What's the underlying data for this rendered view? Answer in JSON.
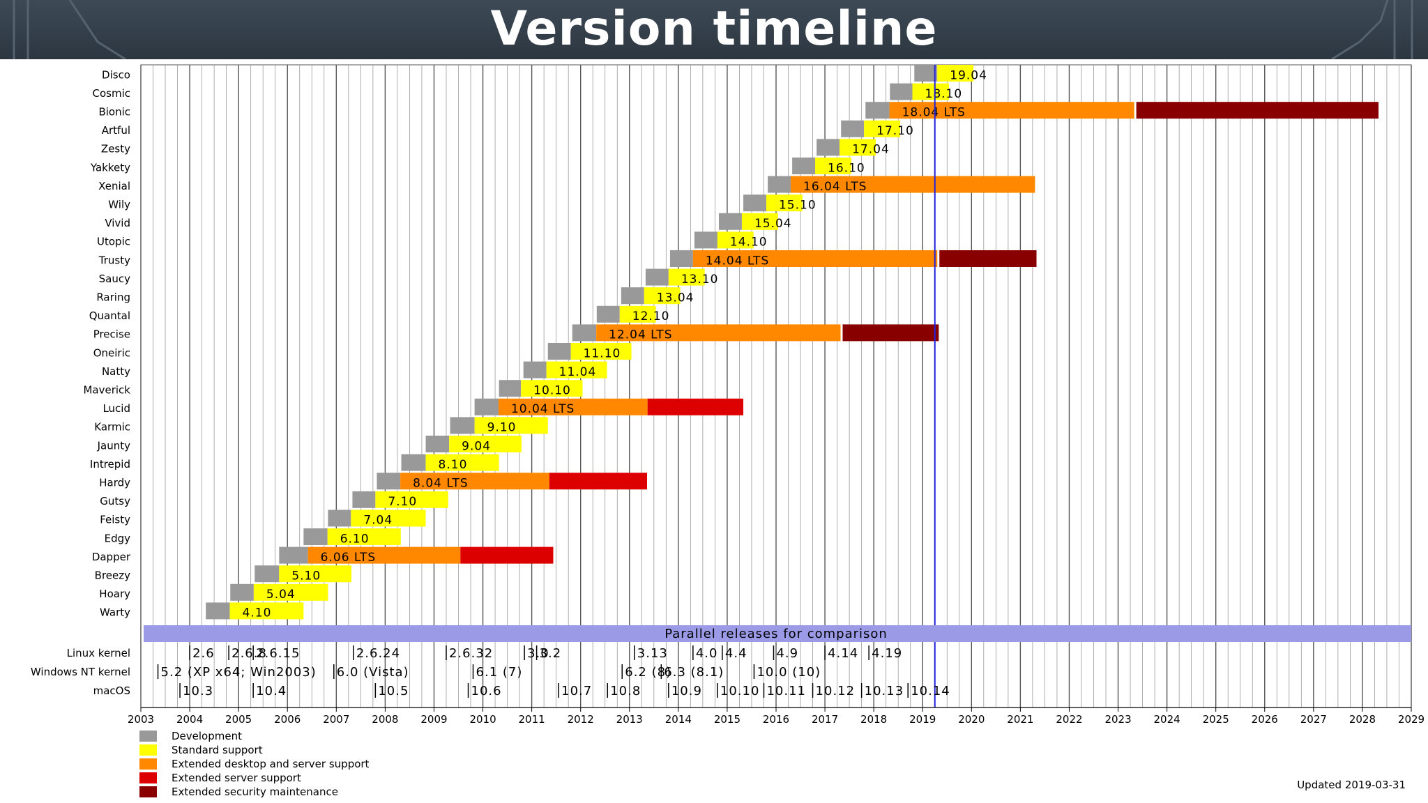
{
  "title": "Version timeline",
  "chart_data": {
    "type": "gantt",
    "x_range": [
      2003,
      2029
    ],
    "year_ticks": [
      "2003",
      "2004",
      "2005",
      "2006",
      "2007",
      "2008",
      "2009",
      "2010",
      "2011",
      "2012",
      "2013",
      "2014",
      "2015",
      "2016",
      "2017",
      "2018",
      "2019",
      "2020",
      "2021",
      "2022",
      "2023",
      "2024",
      "2025",
      "2026",
      "2027",
      "2028",
      "2029"
    ],
    "now_marker": 2019.25,
    "colors": {
      "development": "#999999",
      "standard": "#ffff00",
      "extended_desktop_server": "#ff8800",
      "extended_server": "#dd0000",
      "esm": "#880000"
    },
    "releases": [
      {
        "name": "Disco",
        "label": "19.04",
        "dev": 2018.83,
        "start": 2019.3,
        "std_end": 2020.04
      },
      {
        "name": "Cosmic",
        "label": "18.10",
        "dev": 2018.33,
        "start": 2018.79,
        "std_end": 2019.54
      },
      {
        "name": "Bionic",
        "label": "18.04 LTS",
        "dev": 2017.83,
        "start": 2018.32,
        "std_end": 2018.32,
        "ext_end": 2023.33,
        "esm_end": 2028.33
      },
      {
        "name": "Artful",
        "label": "17.10",
        "dev": 2017.33,
        "start": 2017.8,
        "std_end": 2018.54
      },
      {
        "name": "Zesty",
        "label": "17.04",
        "dev": 2016.83,
        "start": 2017.3,
        "std_end": 2018.04
      },
      {
        "name": "Yakkety",
        "label": "16.10",
        "dev": 2016.33,
        "start": 2016.8,
        "std_end": 2017.54
      },
      {
        "name": "Xenial",
        "label": "16.04 LTS",
        "dev": 2015.83,
        "start": 2016.3,
        "std_end": 2016.3,
        "ext_end": 2021.3
      },
      {
        "name": "Wily",
        "label": "15.10",
        "dev": 2015.33,
        "start": 2015.8,
        "std_end": 2016.54
      },
      {
        "name": "Vivid",
        "label": "15.04",
        "dev": 2014.83,
        "start": 2015.3,
        "std_end": 2016.04
      },
      {
        "name": "Utopic",
        "label": "14.10",
        "dev": 2014.33,
        "start": 2014.8,
        "std_end": 2015.54
      },
      {
        "name": "Trusty",
        "label": "14.04 LTS",
        "dev": 2013.83,
        "start": 2014.3,
        "std_end": 2014.3,
        "ext_end": 2019.3,
        "esm_end": 2021.33
      },
      {
        "name": "Saucy",
        "label": "13.10",
        "dev": 2013.33,
        "start": 2013.8,
        "std_end": 2014.54
      },
      {
        "name": "Raring",
        "label": "13.04",
        "dev": 2012.83,
        "start": 2013.3,
        "std_end": 2014.04
      },
      {
        "name": "Quantal",
        "label": "12.10",
        "dev": 2012.33,
        "start": 2012.8,
        "std_end": 2013.54
      },
      {
        "name": "Precise",
        "label": "12.04 LTS",
        "dev": 2011.83,
        "start": 2012.32,
        "std_end": 2012.32,
        "ext_end": 2017.32,
        "esm_end": 2019.33
      },
      {
        "name": "Oneiric",
        "label": "11.10",
        "dev": 2011.33,
        "start": 2011.8,
        "std_end": 2013.04
      },
      {
        "name": "Natty",
        "label": "11.04",
        "dev": 2010.83,
        "start": 2011.3,
        "std_end": 2012.54
      },
      {
        "name": "Maverick",
        "label": "10.10",
        "dev": 2010.33,
        "start": 2010.78,
        "std_end": 2012.04
      },
      {
        "name": "Lucid",
        "label": "10.04 LTS",
        "dev": 2009.83,
        "start": 2010.32,
        "std_end": 2010.32,
        "ext_end": 2013.37,
        "srv_end": 2015.33
      },
      {
        "name": "Karmic",
        "label": "9.10",
        "dev": 2009.33,
        "start": 2009.83,
        "std_end": 2011.33
      },
      {
        "name": "Jaunty",
        "label": "9.04",
        "dev": 2008.83,
        "start": 2009.31,
        "std_end": 2010.79
      },
      {
        "name": "Intrepid",
        "label": "8.10",
        "dev": 2008.33,
        "start": 2008.83,
        "std_end": 2010.33
      },
      {
        "name": "Hardy",
        "label": "8.04 LTS",
        "dev": 2007.83,
        "start": 2008.31,
        "std_end": 2008.31,
        "ext_end": 2011.36,
        "srv_end": 2013.36
      },
      {
        "name": "Gutsy",
        "label": "7.10",
        "dev": 2007.33,
        "start": 2007.8,
        "std_end": 2009.29
      },
      {
        "name": "Feisty",
        "label": "7.04",
        "dev": 2006.83,
        "start": 2007.3,
        "std_end": 2008.83
      },
      {
        "name": "Edgy",
        "label": "6.10",
        "dev": 2006.33,
        "start": 2006.82,
        "std_end": 2008.32
      },
      {
        "name": "Dapper",
        "label": "6.06 LTS",
        "dev": 2005.83,
        "start": 2006.42,
        "std_end": 2006.42,
        "ext_end": 2009.54,
        "srv_end": 2011.44
      },
      {
        "name": "Breezy",
        "label": "5.10",
        "dev": 2005.33,
        "start": 2005.83,
        "std_end": 2007.31
      },
      {
        "name": "Hoary",
        "label": "5.04",
        "dev": 2004.83,
        "start": 2005.31,
        "std_end": 2006.83
      },
      {
        "name": "Warty",
        "label": "4.10",
        "dev": 2004.33,
        "start": 2004.82,
        "std_end": 2006.33
      }
    ],
    "comparison_title": "Parallel releases for comparison",
    "comparison": [
      {
        "name": "Linux kernel",
        "releases": [
          {
            "x": 2004.0,
            "label": "2.6"
          },
          {
            "x": 2004.8,
            "label": "2.6.8"
          },
          {
            "x": 2005.3,
            "label": "2.6.15"
          },
          {
            "x": 2007.35,
            "label": "2.6.24"
          },
          {
            "x": 2009.25,
            "label": "2.6.32"
          },
          {
            "x": 2010.85,
            "label": "3.0"
          },
          {
            "x": 2011.1,
            "label": "3.2"
          },
          {
            "x": 2013.1,
            "label": "3.13"
          },
          {
            "x": 2014.3,
            "label": "4.0"
          },
          {
            "x": 2014.9,
            "label": "4.4"
          },
          {
            "x": 2015.95,
            "label": "4.9"
          },
          {
            "x": 2017.0,
            "label": "4.14"
          },
          {
            "x": 2017.9,
            "label": "4.19"
          }
        ]
      },
      {
        "name": "Windows NT kernel",
        "releases": [
          {
            "x": 2003.35,
            "label": "5.2 (XP x64; Win2003)"
          },
          {
            "x": 2006.95,
            "label": "6.0 (Vista)"
          },
          {
            "x": 2009.8,
            "label": "6.1 (7)"
          },
          {
            "x": 2012.85,
            "label": "6.2 (8)"
          },
          {
            "x": 2013.65,
            "label": "6.3 (8.1)"
          },
          {
            "x": 2015.55,
            "label": "10.0 (10)"
          }
        ]
      },
      {
        "name": "macOS",
        "releases": [
          {
            "x": 2003.8,
            "label": "10.3"
          },
          {
            "x": 2005.3,
            "label": "10.4"
          },
          {
            "x": 2007.8,
            "label": "10.5"
          },
          {
            "x": 2009.7,
            "label": "10.6"
          },
          {
            "x": 2011.55,
            "label": "10.7"
          },
          {
            "x": 2012.55,
            "label": "10.8"
          },
          {
            "x": 2013.8,
            "label": "10.9"
          },
          {
            "x": 2014.8,
            "label": "10.10"
          },
          {
            "x": 2015.75,
            "label": "10.11"
          },
          {
            "x": 2016.75,
            "label": "10.12"
          },
          {
            "x": 2017.75,
            "label": "10.13"
          },
          {
            "x": 2018.7,
            "label": "10.14"
          }
        ]
      }
    ],
    "legend": [
      {
        "label": "Development",
        "color": "#999999"
      },
      {
        "label": "Standard support",
        "color": "#ffff00"
      },
      {
        "label": "Extended desktop and server support",
        "color": "#ff8800"
      },
      {
        "label": "Extended server support",
        "color": "#dd0000"
      },
      {
        "label": "Extended security maintenance",
        "color": "#880000"
      }
    ],
    "updated": "Updated 2019-03-31"
  }
}
